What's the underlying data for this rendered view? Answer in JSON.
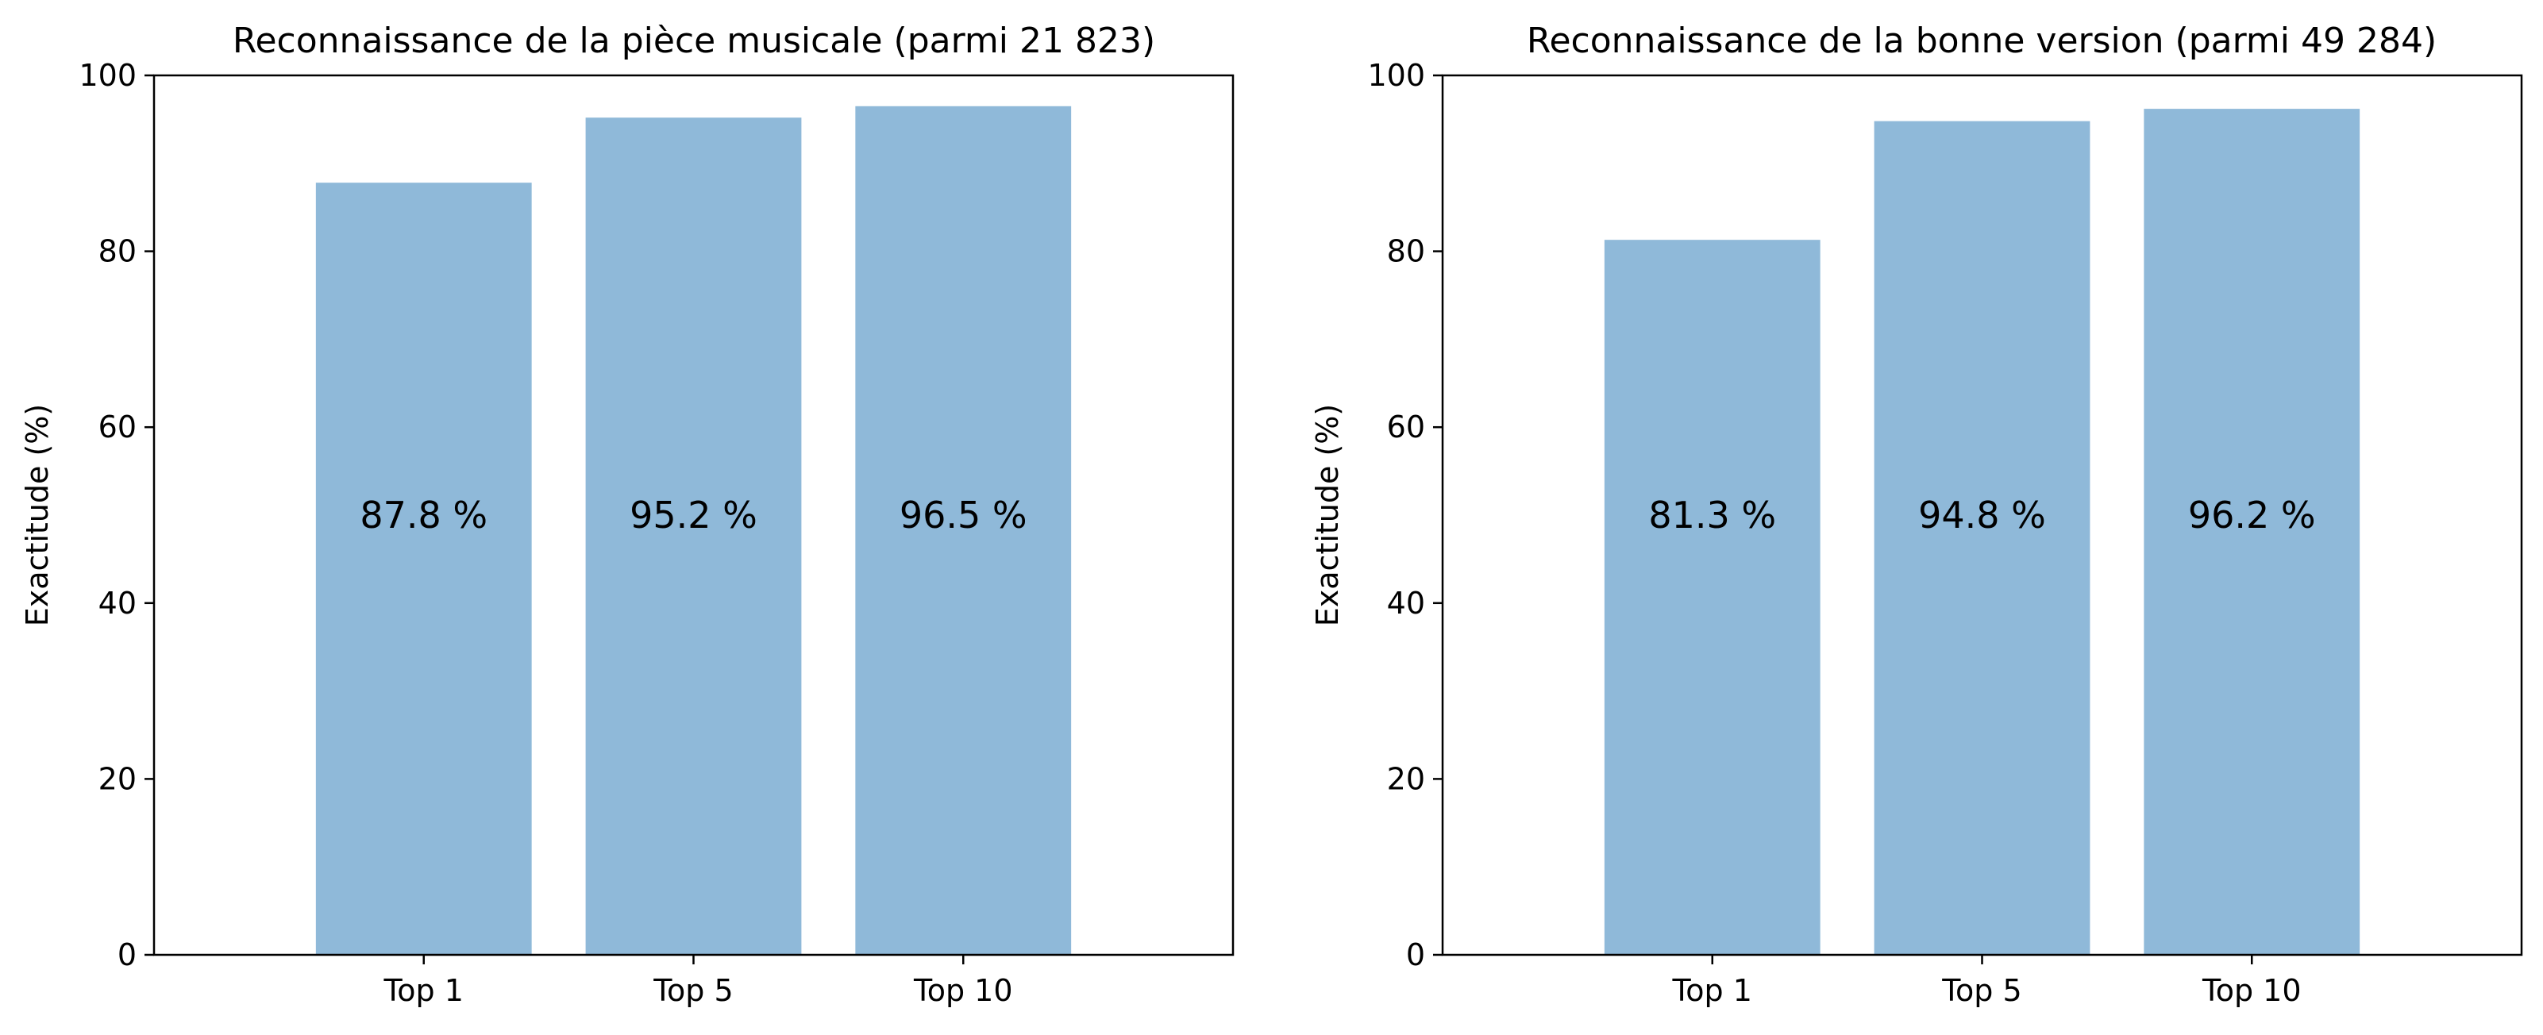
{
  "chart_data": [
    {
      "type": "bar",
      "title": "Reconnaissance de la pièce musicale (parmi 21 823)",
      "xlabel": "",
      "ylabel": "Exactitude (%)",
      "categories": [
        "Top 1",
        "Top 5",
        "Top 10"
      ],
      "values": [
        87.8,
        95.2,
        96.5
      ],
      "labels": [
        "87.8 %",
        "95.2 %",
        "96.5 %"
      ],
      "ylim": [
        0,
        100
      ],
      "yticks": [
        0,
        20,
        40,
        60,
        80,
        100
      ],
      "ytick_labels": [
        "0",
        "20",
        "40",
        "60",
        "80",
        "100"
      ],
      "grid": false,
      "bar_color": "#8fb9d9"
    },
    {
      "type": "bar",
      "title": "Reconnaissance de la bonne version (parmi 49 284)",
      "xlabel": "",
      "ylabel": "Exactitude (%)",
      "categories": [
        "Top 1",
        "Top 5",
        "Top 10"
      ],
      "values": [
        81.3,
        94.8,
        96.2
      ],
      "labels": [
        "81.3 %",
        "94.8 %",
        "96.2 %"
      ],
      "ylim": [
        0,
        100
      ],
      "yticks": [
        0,
        20,
        40,
        60,
        80,
        100
      ],
      "ytick_labels": [
        "0",
        "20",
        "40",
        "60",
        "80",
        "100"
      ],
      "grid": false,
      "bar_color": "#8fb9d9"
    }
  ]
}
